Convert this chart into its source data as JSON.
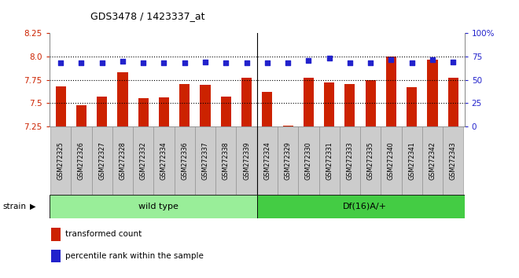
{
  "title": "GDS3478 / 1423337_at",
  "samples": [
    "GSM272325",
    "GSM272326",
    "GSM272327",
    "GSM272328",
    "GSM272332",
    "GSM272334",
    "GSM272336",
    "GSM272337",
    "GSM272338",
    "GSM272339",
    "GSM272324",
    "GSM272329",
    "GSM272330",
    "GSM272331",
    "GSM272333",
    "GSM272335",
    "GSM272340",
    "GSM272341",
    "GSM272342",
    "GSM272343"
  ],
  "red_values": [
    7.68,
    7.48,
    7.57,
    7.83,
    7.55,
    7.56,
    7.71,
    7.7,
    7.57,
    7.77,
    7.62,
    7.26,
    7.77,
    7.72,
    7.71,
    7.75,
    8.0,
    7.67,
    7.97,
    7.77
  ],
  "blue_values": [
    68,
    68,
    68,
    70,
    68,
    68,
    68,
    69,
    68,
    68,
    68,
    68,
    71,
    73,
    68,
    68,
    72,
    68,
    72,
    69
  ],
  "group_labels": [
    "wild type",
    "Df(16)A/+"
  ],
  "group_sizes": [
    10,
    10
  ],
  "ylim_left": [
    7.25,
    8.25
  ],
  "ylim_right": [
    0,
    100
  ],
  "yticks_left": [
    7.25,
    7.5,
    7.75,
    8.0,
    8.25
  ],
  "yticks_right": [
    0,
    25,
    50,
    75,
    100
  ],
  "bar_color": "#cc2200",
  "dot_color": "#2222cc",
  "bg_color": "#ffffff",
  "label_bg": "#cccccc",
  "group_bg_wt": "#99ee99",
  "group_bg_df": "#44cc44",
  "left_axis_color": "#cc2200",
  "right_axis_color": "#2222cc",
  "legend_red": "#cc2200",
  "legend_blue": "#2222cc"
}
